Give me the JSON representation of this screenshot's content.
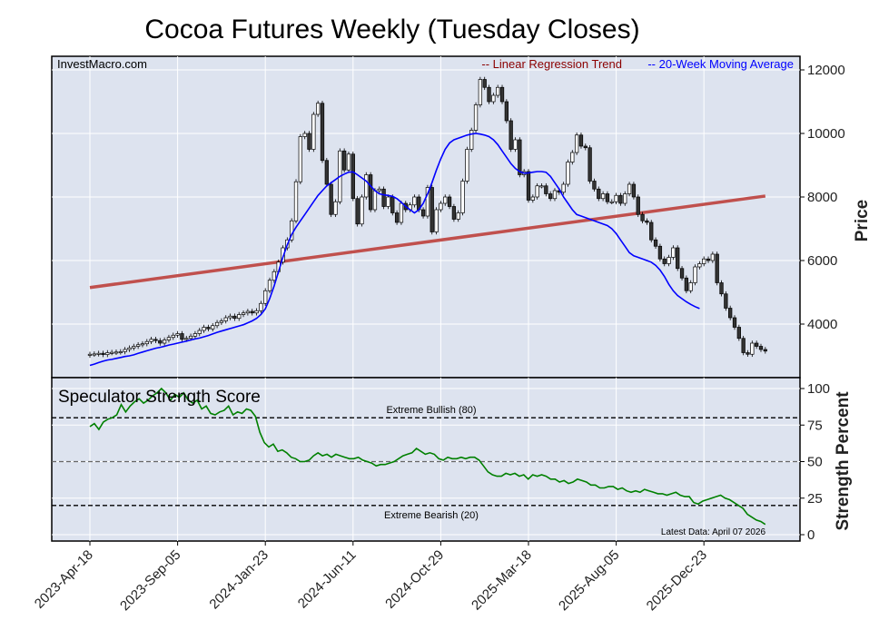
{
  "chart_data": [
    {
      "type": "candlestick",
      "title": "Cocoa Futures Weekly (Tuesday Closes)",
      "source": "InvestMacro.com",
      "ylabel": "Price",
      "ylim": [
        2500,
        12300
      ],
      "yticks": [
        4000,
        6000,
        8000,
        10000,
        12000
      ],
      "legend": {
        "position": "top-right",
        "entries": [
          {
            "label": "-- Linear Regression Trend",
            "color": "#8b0000"
          },
          {
            "label": "-- 20-Week Moving Average",
            "color": "#0000ff"
          }
        ]
      },
      "x_tick_labels": [
        "2023-Apr-18",
        "2023-Sep-05",
        "2024-Jan-23",
        "2024-Jun-11",
        "2024-Oct-29",
        "2025-Mar-18",
        "2025-Aug-05",
        "2025-Dec-23"
      ],
      "x_tick_weeks": [
        0,
        20,
        40,
        60,
        80,
        100,
        120,
        140
      ],
      "closes": [
        3050,
        3060,
        3080,
        3040,
        3100,
        3110,
        3120,
        3130,
        3200,
        3250,
        3300,
        3350,
        3380,
        3450,
        3520,
        3480,
        3400,
        3500,
        3580,
        3650,
        3700,
        3520,
        3550,
        3620,
        3700,
        3800,
        3900,
        3850,
        3950,
        4050,
        4100,
        4200,
        4250,
        4180,
        4300,
        4350,
        4400,
        4350,
        4420,
        4650,
        5050,
        5380,
        5650,
        5950,
        6400,
        6650,
        7250,
        8480,
        9900,
        10000,
        9500,
        10600,
        10950,
        9150,
        8400,
        7450,
        7850,
        9450,
        8850,
        9350,
        7950,
        7150,
        8000,
        8700,
        7600,
        8200,
        8250,
        7700,
        8000,
        7500,
        7200,
        7800,
        7600,
        7750,
        8000,
        7600,
        7400,
        8300,
        6900,
        7600,
        7800,
        8000,
        7700,
        7300,
        7500,
        8500,
        9500,
        10100,
        10900,
        11700,
        11450,
        11000,
        11200,
        11450,
        11000,
        10400,
        9500,
        9800,
        8700,
        8800,
        7900,
        8000,
        8350,
        8350,
        8100,
        7950,
        8200,
        8150,
        8400,
        9100,
        9400,
        9950,
        9600,
        9550,
        8500,
        8250,
        7950,
        8100,
        7850,
        7850,
        8050,
        7800,
        8100,
        8400,
        8000,
        7450,
        7250,
        7200,
        6650,
        6450,
        6050,
        5900,
        6100,
        6400,
        5750,
        5450,
        5050,
        5300,
        5800,
        5900,
        6050,
        6000,
        6200,
        5300,
        4950,
        4500,
        4200,
        3900,
        3550,
        3100,
        3050,
        3400,
        3300,
        3200,
        3150
      ],
      "regression": {
        "start": 5150,
        "end": 8030
      },
      "moving_average": [
        2700,
        2740,
        2790,
        2830,
        2870,
        2890,
        2920,
        2950,
        2980,
        3000,
        3030,
        3080,
        3120,
        3160,
        3200,
        3240,
        3270,
        3300,
        3340,
        3370,
        3400,
        3430,
        3460,
        3500,
        3530,
        3560,
        3600,
        3640,
        3690,
        3740,
        3780,
        3820,
        3860,
        3900,
        3940,
        3980,
        4040,
        4100,
        4180,
        4300,
        4480,
        4800,
        5200,
        5650,
        6100,
        6500,
        6820,
        7050,
        7250,
        7450,
        7650,
        7850,
        8050,
        8200,
        8350,
        8450,
        8550,
        8650,
        8720,
        8780,
        8790,
        8700,
        8600,
        8500,
        8350,
        8200,
        8100,
        8070,
        8050,
        8020,
        7950,
        7830,
        7700,
        7600,
        7500,
        7600,
        7800,
        8100,
        8450,
        8850,
        9200,
        9500,
        9700,
        9800,
        9850,
        9900,
        9950,
        9980,
        10000,
        9980,
        9950,
        9900,
        9800,
        9650,
        9450,
        9250,
        9050,
        8900,
        8800,
        8750,
        8760,
        8780,
        8800,
        8800,
        8780,
        8650,
        8450,
        8250,
        8000,
        7800,
        7600,
        7450,
        7400,
        7350,
        7300,
        7250,
        7200,
        7150,
        7100,
        7000,
        6850,
        6650,
        6450,
        6250,
        6150,
        6100,
        6050,
        6000,
        5950,
        5850,
        5700,
        5500,
        5250,
        5050,
        4900,
        4800,
        4700,
        4620,
        4550,
        4490
      ]
    },
    {
      "type": "line",
      "title": "Speculator Strength Score",
      "ylabel": "Strength Percent",
      "ylim": [
        0,
        100
      ],
      "yticks": [
        0,
        25,
        50,
        75,
        100
      ],
      "reference_lines": [
        {
          "value": 80,
          "label": "Extreme Bullish (80)"
        },
        {
          "value": 50,
          "label": ""
        },
        {
          "value": 20,
          "label": "Extreme Bearish (20)"
        }
      ],
      "note": "Latest Data: April 07 2026",
      "color": "#008000",
      "values": [
        74,
        76,
        72,
        77,
        79,
        80,
        82,
        89,
        84,
        88,
        91,
        93,
        90,
        92,
        95,
        97,
        100,
        97,
        92,
        96,
        94,
        97,
        92,
        90,
        92,
        86,
        88,
        83,
        82,
        84,
        85,
        88,
        82,
        84,
        83,
        86,
        85,
        81,
        70,
        63,
        60,
        62,
        57,
        58,
        56,
        53,
        52,
        50,
        50,
        51,
        54,
        56,
        54,
        55,
        53,
        55,
        54,
        53,
        52,
        52,
        53,
        51,
        50,
        49,
        47,
        48,
        48,
        49,
        50,
        52,
        54,
        55,
        56,
        59,
        57,
        55,
        56,
        55,
        52,
        51,
        53,
        52,
        52,
        53,
        52,
        53,
        53,
        51,
        47,
        43,
        41,
        40,
        40,
        42,
        41,
        42,
        40,
        41,
        38,
        41,
        40,
        41,
        40,
        38,
        38,
        36,
        37,
        35,
        36,
        38,
        37,
        36,
        34,
        34,
        32,
        32,
        33,
        33,
        31,
        32,
        30,
        29,
        30,
        29,
        31,
        30,
        29,
        28,
        28,
        27,
        28,
        29,
        27,
        26,
        26,
        22,
        21,
        23,
        24,
        25,
        26,
        27,
        25,
        24,
        22,
        20,
        18,
        14,
        12,
        10,
        9,
        7
      ]
    }
  ]
}
